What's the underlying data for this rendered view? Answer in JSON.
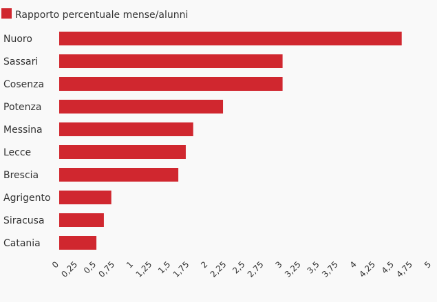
{
  "chart_data": {
    "type": "bar",
    "orientation": "horizontal",
    "categories": [
      "Nuoro",
      "Sassari",
      "Cosenza",
      "Potenza",
      "Messina",
      "Lecce",
      "Brescia",
      "Agrigento",
      "Siracusa",
      "Catania"
    ],
    "series": [
      {
        "name": "Rapporto percentuale mense/alunni",
        "values": [
          4.6,
          3.0,
          3.0,
          2.2,
          1.8,
          1.7,
          1.6,
          0.7,
          0.6,
          0.5
        ],
        "color": "#d0272f"
      }
    ],
    "xlim": [
      0,
      5
    ],
    "xticks": [
      "0",
      "0,25",
      "0,5",
      "0,75",
      "1",
      "1,25",
      "1,5",
      "1,75",
      "2",
      "2,25",
      "2,5",
      "2,75",
      "3",
      "3,25",
      "3,5",
      "3,75",
      "4",
      "4,25",
      "4,5",
      "4,75",
      "5"
    ],
    "grid": false,
    "legend_position": "top-left"
  }
}
